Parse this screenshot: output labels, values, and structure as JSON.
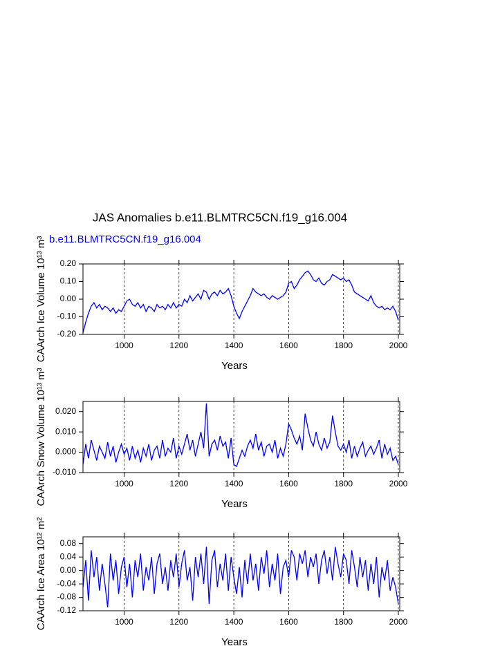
{
  "title": "JAS Anomalies b.e11.BLMTRC5CN.f19_g16.004",
  "subtitle": "b.e11.BLMTRC5CN.f19_g16.004",
  "chart_data": [
    {
      "type": "line",
      "ylabel": "CAArch Ice Volume 10¹³ m³",
      "xlabel": "Years",
      "color": "#0000ff",
      "grid": true,
      "xlim": [
        850,
        2005
      ],
      "xticks": [
        1000,
        1200,
        1400,
        1600,
        1800,
        2000
      ],
      "ylim": [
        -0.2,
        0.2
      ],
      "yticks": [
        {
          "value": -0.2,
          "label": "-0.20"
        },
        {
          "value": -0.1,
          "label": "-0.10"
        },
        {
          "value": 0,
          "label": "0.00"
        },
        {
          "value": 0.1,
          "label": "0.10"
        },
        {
          "value": 0.2,
          "label": "0.20"
        }
      ],
      "x": [
        850,
        860,
        870,
        880,
        890,
        900,
        910,
        920,
        930,
        940,
        950,
        960,
        970,
        980,
        990,
        1000,
        1010,
        1020,
        1030,
        1040,
        1050,
        1060,
        1070,
        1080,
        1090,
        1100,
        1110,
        1120,
        1130,
        1140,
        1150,
        1160,
        1170,
        1180,
        1190,
        1200,
        1210,
        1220,
        1230,
        1240,
        1250,
        1260,
        1270,
        1280,
        1290,
        1300,
        1310,
        1320,
        1330,
        1340,
        1350,
        1360,
        1370,
        1380,
        1390,
        1400,
        1410,
        1420,
        1430,
        1440,
        1450,
        1460,
        1470,
        1480,
        1490,
        1500,
        1510,
        1520,
        1530,
        1540,
        1550,
        1560,
        1570,
        1580,
        1590,
        1600,
        1610,
        1620,
        1630,
        1640,
        1650,
        1660,
        1670,
        1680,
        1690,
        1700,
        1710,
        1720,
        1730,
        1740,
        1750,
        1760,
        1770,
        1780,
        1790,
        1800,
        1810,
        1820,
        1830,
        1840,
        1850,
        1860,
        1870,
        1880,
        1890,
        1900,
        1910,
        1920,
        1930,
        1940,
        1950,
        1960,
        1970,
        1980,
        1990,
        2000
      ],
      "values": [
        -0.19,
        -0.13,
        -0.08,
        -0.04,
        -0.02,
        -0.05,
        -0.03,
        -0.06,
        -0.04,
        -0.05,
        -0.07,
        -0.05,
        -0.08,
        -0.06,
        -0.07,
        -0.04,
        -0.01,
        0.0,
        -0.03,
        -0.04,
        -0.02,
        -0.05,
        -0.03,
        -0.07,
        -0.04,
        -0.05,
        -0.07,
        -0.03,
        -0.05,
        -0.04,
        -0.06,
        -0.03,
        -0.05,
        -0.02,
        -0.05,
        -0.03,
        -0.04,
        0.0,
        -0.02,
        0.02,
        -0.01,
        0.01,
        0.03,
        0.0,
        0.05,
        0.04,
        0.0,
        0.03,
        0.04,
        0.02,
        0.05,
        0.03,
        0.04,
        0.06,
        0.02,
        -0.04,
        -0.08,
        -0.11,
        -0.07,
        -0.04,
        -0.01,
        0.02,
        0.06,
        0.04,
        0.03,
        0.02,
        0.03,
        0.01,
        0.0,
        0.02,
        0.01,
        0.0,
        0.01,
        0.02,
        0.04,
        0.09,
        0.1,
        0.06,
        0.08,
        0.11,
        0.13,
        0.15,
        0.16,
        0.14,
        0.11,
        0.1,
        0.12,
        0.09,
        0.08,
        0.1,
        0.11,
        0.14,
        0.13,
        0.12,
        0.11,
        0.12,
        0.1,
        0.11,
        0.08,
        0.04,
        0.03,
        0.02,
        0.01,
        0.0,
        -0.01,
        0.02,
        -0.02,
        -0.04,
        -0.05,
        -0.04,
        -0.06,
        -0.05,
        -0.06,
        -0.04,
        -0.07,
        -0.12
      ]
    },
    {
      "type": "line",
      "ylabel": "CAArch Snow Volume 10¹³ m³",
      "xlabel": "Years",
      "color": "#0000ff",
      "grid": true,
      "xlim": [
        850,
        2005
      ],
      "xticks": [
        1000,
        1200,
        1400,
        1600,
        1800,
        2000
      ],
      "ylim": [
        -0.01,
        0.025
      ],
      "yticks": [
        {
          "value": -0.01,
          "label": "-0.010"
        },
        {
          "value": 0,
          "label": "0.000"
        },
        {
          "value": 0.01,
          "label": "0.010"
        },
        {
          "value": 0.02,
          "label": "0.020"
        }
      ],
      "x": [
        850,
        860,
        870,
        880,
        890,
        900,
        910,
        920,
        930,
        940,
        950,
        960,
        970,
        980,
        990,
        1000,
        1010,
        1020,
        1030,
        1040,
        1050,
        1060,
        1070,
        1080,
        1090,
        1100,
        1110,
        1120,
        1130,
        1140,
        1150,
        1160,
        1170,
        1180,
        1190,
        1200,
        1210,
        1220,
        1230,
        1240,
        1250,
        1260,
        1270,
        1280,
        1290,
        1300,
        1310,
        1320,
        1330,
        1340,
        1350,
        1360,
        1370,
        1380,
        1390,
        1400,
        1410,
        1420,
        1430,
        1440,
        1450,
        1460,
        1470,
        1480,
        1490,
        1500,
        1510,
        1520,
        1530,
        1540,
        1550,
        1560,
        1570,
        1580,
        1590,
        1600,
        1610,
        1620,
        1630,
        1640,
        1650,
        1660,
        1670,
        1680,
        1690,
        1700,
        1710,
        1720,
        1730,
        1740,
        1750,
        1760,
        1770,
        1780,
        1790,
        1800,
        1810,
        1820,
        1830,
        1840,
        1850,
        1860,
        1870,
        1880,
        1890,
        1900,
        1910,
        1920,
        1930,
        1940,
        1950,
        1960,
        1970,
        1980,
        1990,
        2000
      ],
      "values": [
        -0.006,
        0.004,
        -0.003,
        0.006,
        0.001,
        -0.004,
        0.003,
        0.0,
        -0.003,
        0.005,
        -0.002,
        0.003,
        -0.005,
        0.0,
        0.004,
        -0.001,
        0.002,
        -0.004,
        0.003,
        -0.003,
        0.001,
        -0.005,
        0.002,
        -0.002,
        0.004,
        -0.004,
        0.001,
        0.003,
        -0.003,
        0.006,
        -0.002,
        0.002,
        0.0,
        0.007,
        -0.003,
        0.003,
        -0.001,
        0.004,
        0.009,
        0.001,
        0.006,
        -0.002,
        0.004,
        0.01,
        0.002,
        0.024,
        -0.002,
        0.004,
        0.006,
        0.001,
        0.008,
        0.003,
        0.005,
        -0.003,
        0.007,
        -0.006,
        -0.007,
        -0.003,
        0.001,
        -0.002,
        0.003,
        0.006,
        0.002,
        0.009,
        0.001,
        0.005,
        -0.002,
        0.003,
        0.004,
        0.0,
        0.006,
        -0.003,
        0.002,
        -0.002,
        0.004,
        0.014,
        0.011,
        0.007,
        0.004,
        0.008,
        0.001,
        0.019,
        0.012,
        0.006,
        0.003,
        0.01,
        0.004,
        0.001,
        0.007,
        0.002,
        0.005,
        0.018,
        0.01,
        0.003,
        0.001,
        0.004,
        0.0,
        0.006,
        -0.003,
        0.003,
        -0.002,
        0.002,
        0.005,
        -0.002,
        0.001,
        0.003,
        -0.001,
        0.002,
        0.006,
        -0.003,
        0.004,
        -0.001,
        0.002,
        -0.004,
        -0.002,
        -0.006
      ]
    },
    {
      "type": "line",
      "ylabel": "CAArch Ice Area 10¹² m²",
      "xlabel": "Years",
      "color": "#0000ff",
      "grid": true,
      "xlim": [
        850,
        2005
      ],
      "xticks": [
        1000,
        1200,
        1400,
        1600,
        1800,
        2000
      ],
      "ylim": [
        -0.12,
        0.1
      ],
      "yticks": [
        {
          "value": -0.12,
          "label": "-0.12"
        },
        {
          "value": -0.08,
          "label": "-0.08"
        },
        {
          "value": -0.04,
          "label": "-0.04"
        },
        {
          "value": 0,
          "label": "0.00"
        },
        {
          "value": 0.04,
          "label": "0.04"
        },
        {
          "value": 0.08,
          "label": "0.08"
        }
      ],
      "x": [
        850,
        860,
        870,
        880,
        890,
        900,
        910,
        920,
        930,
        940,
        950,
        960,
        970,
        980,
        990,
        1000,
        1010,
        1020,
        1030,
        1040,
        1050,
        1060,
        1070,
        1080,
        1090,
        1100,
        1110,
        1120,
        1130,
        1140,
        1150,
        1160,
        1170,
        1180,
        1190,
        1200,
        1210,
        1220,
        1230,
        1240,
        1250,
        1260,
        1270,
        1280,
        1290,
        1300,
        1310,
        1320,
        1330,
        1340,
        1350,
        1360,
        1370,
        1380,
        1390,
        1400,
        1410,
        1420,
        1430,
        1440,
        1450,
        1460,
        1470,
        1480,
        1490,
        1500,
        1510,
        1520,
        1530,
        1540,
        1550,
        1560,
        1570,
        1580,
        1590,
        1600,
        1610,
        1620,
        1630,
        1640,
        1650,
        1660,
        1670,
        1680,
        1690,
        1700,
        1710,
        1720,
        1730,
        1740,
        1750,
        1760,
        1770,
        1780,
        1790,
        1800,
        1810,
        1820,
        1830,
        1840,
        1850,
        1860,
        1870,
        1880,
        1890,
        1900,
        1910,
        1920,
        1930,
        1940,
        1950,
        1960,
        1970,
        1980,
        1990,
        2000
      ],
      "values": [
        -0.05,
        0.03,
        -0.09,
        0.06,
        -0.02,
        0.04,
        -0.06,
        0.02,
        -0.04,
        -0.11,
        0.05,
        -0.03,
        0.03,
        -0.07,
        0.01,
        0.04,
        -0.05,
        0.02,
        -0.08,
        0.03,
        -0.02,
        0.05,
        -0.06,
        0.01,
        -0.03,
        0.04,
        -0.07,
        0.02,
        0.05,
        -0.04,
        0.01,
        -0.06,
        0.03,
        -0.02,
        0.05,
        -0.05,
        0.02,
        0.06,
        -0.03,
        0.01,
        -0.09,
        0.04,
        -0.02,
        0.05,
        -0.04,
        0.07,
        -0.1,
        0.03,
        0.06,
        -0.05,
        0.02,
        -0.03,
        0.05,
        -0.06,
        0.04,
        -0.02,
        -0.07,
        0.01,
        -0.08,
        0.03,
        -0.04,
        0.05,
        -0.03,
        0.02,
        -0.06,
        0.04,
        -0.01,
        0.06,
        -0.05,
        0.02,
        -0.03,
        0.05,
        -0.07,
        0.01,
        0.03,
        -0.02,
        0.06,
        0.04,
        -0.03,
        0.05,
        0.02,
        0.06,
        -0.02,
        0.04,
        0.01,
        0.05,
        -0.04,
        0.03,
        0.06,
        -0.01,
        0.04,
        -0.03,
        0.07,
        0.02,
        -0.02,
        0.05,
        0.03,
        -0.04,
        0.06,
        0.01,
        -0.05,
        0.04,
        -0.02,
        0.03,
        -0.06,
        0.02,
        -0.04,
        0.04,
        -0.08,
        0.01,
        -0.03,
        0.03,
        -0.06,
        -0.02,
        -0.05,
        -0.1
      ]
    }
  ]
}
